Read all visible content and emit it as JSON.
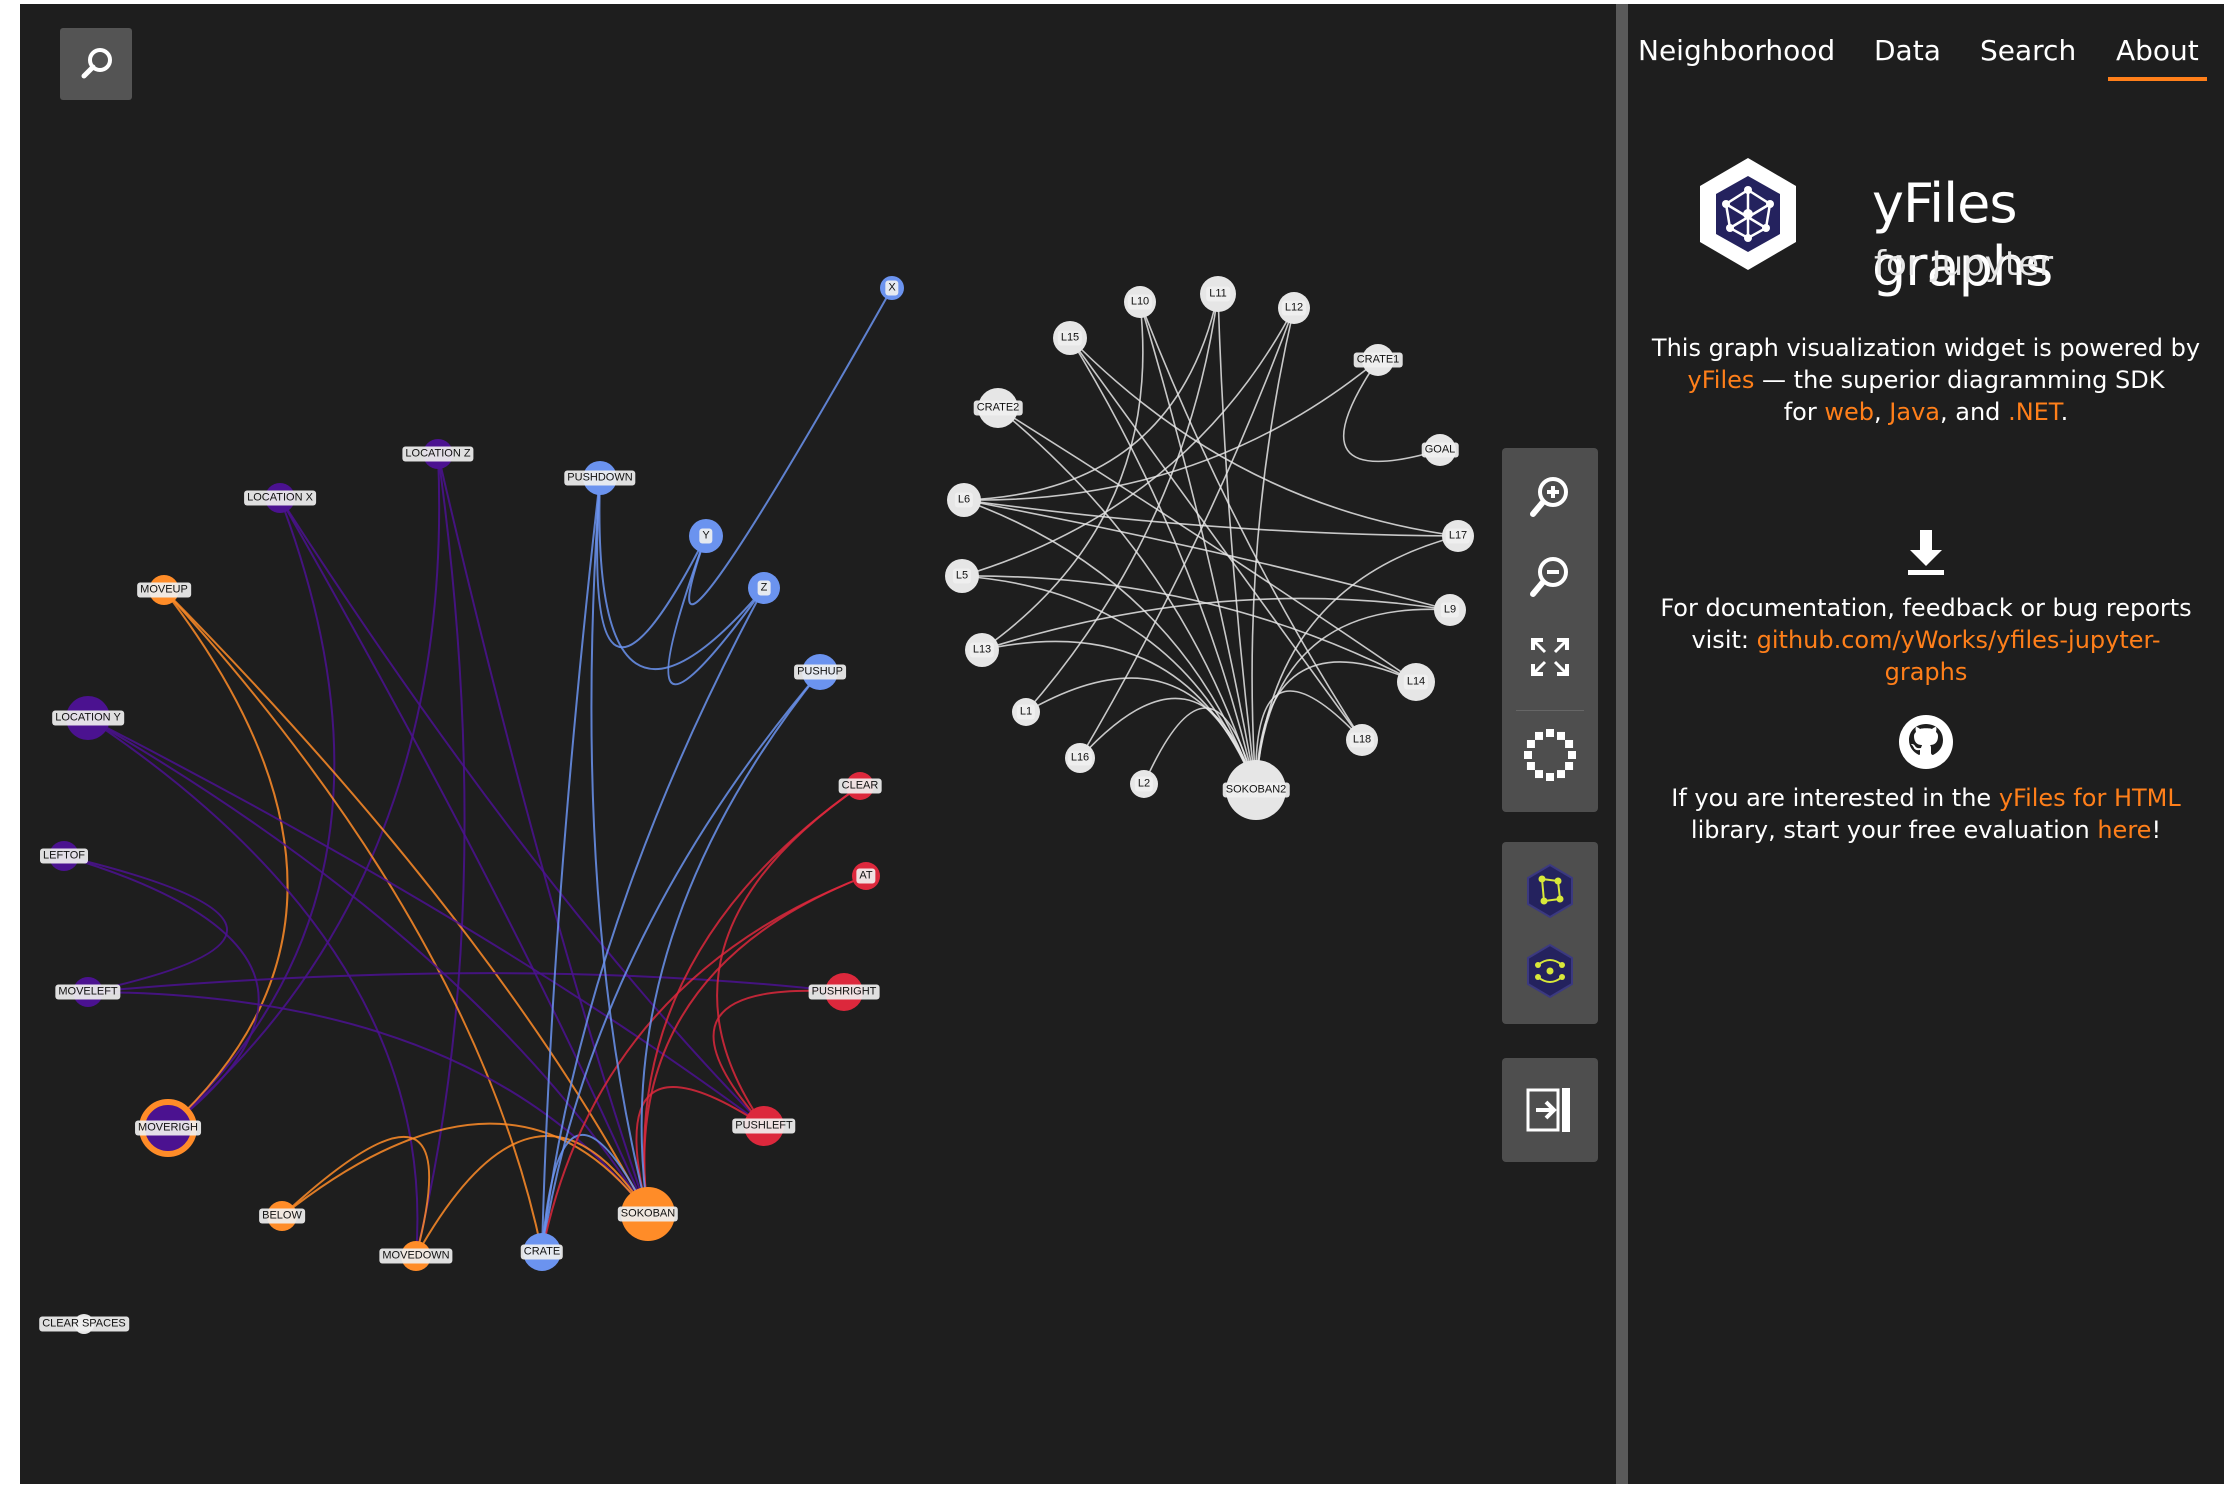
{
  "panel": {
    "tabs": [
      {
        "label": "Neighborhood",
        "active": false
      },
      {
        "label": "Data",
        "active": false
      },
      {
        "label": "Search",
        "active": false
      },
      {
        "label": "About",
        "active": true
      }
    ],
    "logo_title": "yFiles graphs",
    "logo_sub": "for Jupyter",
    "intro": {
      "before": "This graph visualization widget is powered by",
      "link_yfiles": "yFiles",
      "middle": "— the superior diagramming SDK",
      "for_word": "for",
      "link_web": "web",
      "comma1": ",",
      "link_java": "Java",
      "and_word": ", and",
      "link_net": ".NET",
      "period": "."
    },
    "docs": {
      "before": "For documentation, feedback or bug reports",
      "visit": "visit:",
      "link1": "github.com/yWorks/yfiles-jupyter-",
      "link2": "graphs"
    },
    "eval": {
      "before": "If you are interested in the",
      "link_html": "yFiles for HTML",
      "line2": "library, start your free evaluation",
      "link_here": "here",
      "end": "!"
    }
  },
  "toolbar": {
    "zoom_in": "zoom-in-icon",
    "zoom_out": "zoom-out-icon",
    "fit": "fit-content-icon",
    "layout": "layout-circle-icon",
    "layout_organic": "organic-layout-icon",
    "layout_radial": "radial-layout-icon",
    "collapse": "collapse-panel-icon"
  },
  "colors": {
    "purple": "#4b1290",
    "orange": "#ff8c28",
    "blue": "#6b93ef",
    "red": "#dc283c",
    "white": "#e6e6e6",
    "accent": "#ff7f1a"
  },
  "graph": {
    "nodes": [
      {
        "id": "LOCATION Z",
        "label": "LOCATION Z",
        "c": "purple",
        "r": 15
      },
      {
        "id": "LOCATION X",
        "label": "LOCATION X",
        "c": "purple",
        "r": 15
      },
      {
        "id": "MOVEUP",
        "label": "MOVEUP",
        "c": "orange",
        "r": 15
      },
      {
        "id": "LOCATION Y",
        "label": "LOCATION Y",
        "c": "purple",
        "r": 22
      },
      {
        "id": "LEFTOF",
        "label": "LEFTOF",
        "c": "purple",
        "r": 15
      },
      {
        "id": "MOVELEFT",
        "label": "MOVELEFT",
        "c": "purple",
        "r": 15
      },
      {
        "id": "MOVERIGHT",
        "label": "MOVERIGH",
        "c": "purple",
        "r": 26,
        "selected": true
      },
      {
        "id": "BELOW",
        "label": "BELOW",
        "c": "orange",
        "r": 15
      },
      {
        "id": "MOVEDOWN",
        "label": "MOVEDOWN",
        "c": "orange",
        "r": 15
      },
      {
        "id": "CRATE",
        "label": "CRATE",
        "c": "blue",
        "r": 19
      },
      {
        "id": "SOKOBAN",
        "label": "SOKOBAN",
        "c": "orange",
        "r": 27
      },
      {
        "id": "PUSHLEFT",
        "label": "PUSHLEFT",
        "c": "red",
        "r": 20
      },
      {
        "id": "PUSHRIGHT",
        "label": "PUSHRIGHT",
        "c": "red",
        "r": 19
      },
      {
        "id": "AT",
        "label": "AT",
        "c": "red",
        "r": 14
      },
      {
        "id": "CLEAR",
        "label": "CLEAR",
        "c": "red",
        "r": 14
      },
      {
        "id": "PUSHUP",
        "label": "PUSHUP",
        "c": "blue",
        "r": 18
      },
      {
        "id": "Z",
        "label": "Z",
        "c": "blue",
        "r": 16
      },
      {
        "id": "Y",
        "label": "Y",
        "c": "blue",
        "r": 17
      },
      {
        "id": "X",
        "label": "X",
        "c": "blue",
        "r": 12
      },
      {
        "id": "PUSHDOWN",
        "label": "PUSHDOWN",
        "c": "blue",
        "r": 17
      },
      {
        "id": "CLEAR SPACES",
        "label": "CLEAR SPACES",
        "c": "white",
        "r": 10
      },
      {
        "id": "SOKOBAN2",
        "label": "SOKOBAN2",
        "c": "white",
        "r": 30
      },
      {
        "id": "L1",
        "label": "L1",
        "c": "white",
        "r": 14
      },
      {
        "id": "L2",
        "label": "L2",
        "c": "white",
        "r": 14
      },
      {
        "id": "L5",
        "label": "L5",
        "c": "white",
        "r": 17
      },
      {
        "id": "L6",
        "label": "L6",
        "c": "white",
        "r": 17
      },
      {
        "id": "L9",
        "label": "L9",
        "c": "white",
        "r": 16
      },
      {
        "id": "L10",
        "label": "L10",
        "c": "white",
        "r": 16
      },
      {
        "id": "L11",
        "label": "L11",
        "c": "white",
        "r": 18
      },
      {
        "id": "L12",
        "label": "L12",
        "c": "white",
        "r": 16
      },
      {
        "id": "L13",
        "label": "L13",
        "c": "white",
        "r": 17
      },
      {
        "id": "L14",
        "label": "L14",
        "c": "white",
        "r": 19
      },
      {
        "id": "L15",
        "label": "L15",
        "c": "white",
        "r": 17
      },
      {
        "id": "L16",
        "label": "L16",
        "c": "white",
        "r": 15
      },
      {
        "id": "L17",
        "label": "L17",
        "c": "white",
        "r": 16
      },
      {
        "id": "L18",
        "label": "L18",
        "c": "white",
        "r": 16
      },
      {
        "id": "CRATE1",
        "label": "CRATE1",
        "c": "white",
        "r": 16
      },
      {
        "id": "CRATE2",
        "label": "CRATE2",
        "c": "white",
        "r": 20
      },
      {
        "id": "GOAL",
        "label": "GOAL",
        "c": "white",
        "r": 16
      }
    ],
    "edges": [
      [
        "LOCATION Z",
        "MOVERIGHT"
      ],
      [
        "LOCATION Z",
        "SOKOBAN"
      ],
      [
        "LOCATION Z",
        "MOVEDOWN"
      ],
      [
        "LOCATION X",
        "MOVERIGHT"
      ],
      [
        "LOCATION X",
        "SOKOBAN"
      ],
      [
        "LOCATION X",
        "PUSHLEFT"
      ],
      [
        "MOVEUP",
        "SOKOBAN"
      ],
      [
        "MOVEUP",
        "CRATE"
      ],
      [
        "MOVEUP",
        "MOVERIGHT"
      ],
      [
        "LOCATION Y",
        "SOKOBAN"
      ],
      [
        "LOCATION Y",
        "MOVEDOWN"
      ],
      [
        "LOCATION Y",
        "PUSHLEFT"
      ],
      [
        "LEFTOF",
        "MOVELEFT"
      ],
      [
        "LEFTOF",
        "MOVERIGHT"
      ],
      [
        "MOVELEFT",
        "SOKOBAN"
      ],
      [
        "MOVELEFT",
        "PUSHRIGHT"
      ],
      [
        "BELOW",
        "SOKOBAN"
      ],
      [
        "BELOW",
        "MOVEDOWN"
      ],
      [
        "MOVEDOWN",
        "SOKOBAN"
      ],
      [
        "CRATE",
        "SOKOBAN"
      ],
      [
        "CRATE",
        "PUSHUP"
      ],
      [
        "CRATE",
        "PUSHDOWN"
      ],
      [
        "PUSHLEFT",
        "SOKOBAN"
      ],
      [
        "PUSHLEFT",
        "PUSHRIGHT"
      ],
      [
        "AT",
        "SOKOBAN"
      ],
      [
        "AT",
        "CRATE"
      ],
      [
        "CLEAR",
        "SOKOBAN"
      ],
      [
        "CLEAR",
        "PUSHLEFT"
      ],
      [
        "PUSHUP",
        "SOKOBAN"
      ],
      [
        "Z",
        "CRATE"
      ],
      [
        "Z",
        "PUSHDOWN"
      ],
      [
        "Y",
        "PUSHDOWN"
      ],
      [
        "Y",
        "Z"
      ],
      [
        "X",
        "Y"
      ],
      [
        "PUSHDOWN",
        "SOKOBAN"
      ],
      [
        "SOKOBAN2",
        "L1"
      ],
      [
        "SOKOBAN2",
        "L2"
      ],
      [
        "SOKOBAN2",
        "L5"
      ],
      [
        "SOKOBAN2",
        "L6"
      ],
      [
        "SOKOBAN2",
        "L9"
      ],
      [
        "SOKOBAN2",
        "L10"
      ],
      [
        "SOKOBAN2",
        "L11"
      ],
      [
        "SOKOBAN2",
        "L12"
      ],
      [
        "SOKOBAN2",
        "L13"
      ],
      [
        "SOKOBAN2",
        "L14"
      ],
      [
        "SOKOBAN2",
        "L15"
      ],
      [
        "SOKOBAN2",
        "L16"
      ],
      [
        "SOKOBAN2",
        "L17"
      ],
      [
        "SOKOBAN2",
        "L18"
      ],
      [
        "SOKOBAN2",
        "CRATE2"
      ],
      [
        "L6",
        "L17"
      ],
      [
        "L6",
        "L11"
      ],
      [
        "L5",
        "L14"
      ],
      [
        "L13",
        "L9"
      ],
      [
        "L15",
        "L18"
      ],
      [
        "CRATE2",
        "L14"
      ],
      [
        "L10",
        "L13"
      ],
      [
        "L12",
        "L5"
      ],
      [
        "L11",
        "L1"
      ],
      [
        "L15",
        "L17"
      ],
      [
        "CRATE1",
        "GOAL"
      ],
      [
        "CRATE1",
        "L6"
      ],
      [
        "L9",
        "L6"
      ],
      [
        "L16",
        "L12"
      ],
      [
        "L10",
        "L18"
      ]
    ]
  }
}
